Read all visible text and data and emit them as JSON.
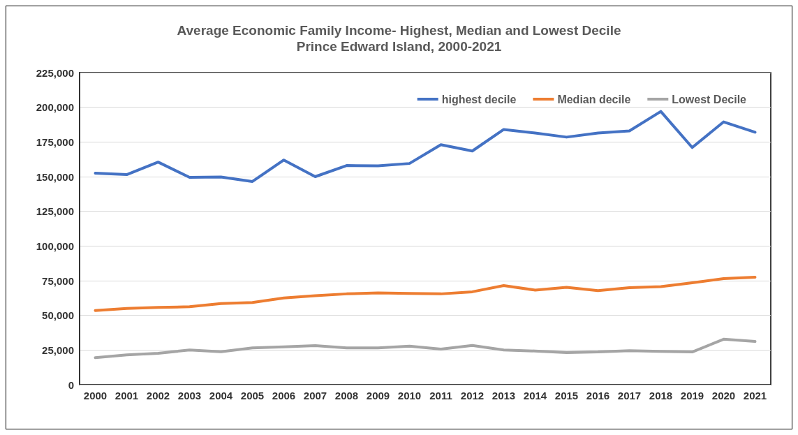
{
  "chart_data": {
    "type": "line",
    "title": "Average Economic Family Income- Highest, Median and Lowest Decile\nPrince Edward Island, 2000-2021",
    "categories": [
      "2000",
      "2001",
      "2002",
      "2003",
      "2004",
      "2005",
      "2006",
      "2007",
      "2008",
      "2009",
      "2010",
      "2011",
      "2012",
      "2013",
      "2014",
      "2015",
      "2016",
      "2017",
      "2018",
      "2019",
      "2020",
      "2021"
    ],
    "series": [
      {
        "name": "highest decile",
        "color": "#4472c4",
        "values": [
          152500,
          151500,
          160500,
          149500,
          149800,
          146500,
          162000,
          150000,
          158000,
          157800,
          159500,
          173000,
          168500,
          184000,
          181500,
          178500,
          181500,
          183000,
          197000,
          171000,
          189500,
          182000
        ]
      },
      {
        "name": "Median decile",
        "color": "#ed7d31",
        "values": [
          53500,
          55000,
          55700,
          56200,
          58500,
          59300,
          62500,
          64200,
          65500,
          66200,
          65800,
          65500,
          67000,
          71500,
          68200,
          70200,
          67800,
          70000,
          70700,
          73500,
          76500,
          77500
        ]
      },
      {
        "name": "Lowest Decile",
        "color": "#a5a5a5",
        "values": [
          19500,
          21500,
          22700,
          25000,
          23800,
          26500,
          27300,
          28200,
          26500,
          26500,
          27800,
          25700,
          28300,
          25000,
          24300,
          23200,
          23600,
          24600,
          24000,
          23600,
          32800,
          31200
        ]
      }
    ],
    "ylim": [
      0,
      225000
    ],
    "yticks": [
      0,
      {
        "value": 25000,
        "label": "25,000"
      },
      {
        "value": 50000,
        "label": "50,000"
      },
      {
        "value": 75000,
        "label": "75,000"
      },
      {
        "value": 100000,
        "label": "100,000"
      },
      {
        "value": 125000,
        "label": "125,000"
      },
      {
        "value": 150000,
        "label": "150,000"
      },
      {
        "value": 175000,
        "label": "175,000"
      },
      {
        "value": 200000,
        "label": "200,000"
      },
      {
        "value": 225000,
        "label": "225,000"
      }
    ],
    "grid": "y",
    "legend": "top right",
    "marker": "none",
    "line_style": "solid"
  }
}
